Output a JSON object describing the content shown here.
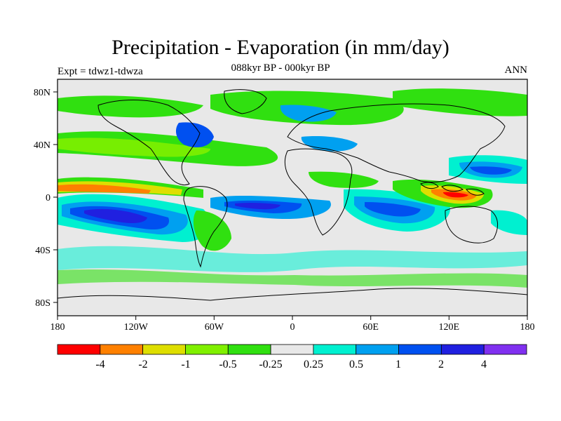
{
  "title": "Precipitation - Evaporation (in mm/day)",
  "subtitle": "088kyr BP - 000kyr BP",
  "left_label": "Expt = tdwz1-tdwza",
  "right_label": "ANN",
  "lat_ticks": [
    "80N",
    "40N",
    "0",
    "40S",
    "80S"
  ],
  "lon_ticks": [
    "180",
    "120W",
    "60W",
    "0",
    "60E",
    "120E",
    "180"
  ],
  "colorbar": {
    "colors": [
      "#ff0000",
      "#ff8000",
      "#dede00",
      "#80f000",
      "#30e010",
      "#e8e8e8",
      "#00f0d0",
      "#00a0f0",
      "#0050f0",
      "#2020e0",
      "#8030f0"
    ],
    "labels": [
      "-4",
      "-2",
      "-1",
      "-0.5",
      "-0.25",
      "0.25",
      "0.5",
      "1",
      "2",
      "4"
    ]
  },
  "palette": {
    "background": "#e8e8e8",
    "strong_neg": "#ff0000",
    "neg": "#ff8000",
    "mild_neg": "#dede00",
    "light_neg": "#80f000",
    "weak_neg": "#30e010",
    "weak_pos": "#00f0d0",
    "light_pos": "#00a0f0",
    "pos": "#0050f0",
    "strong_pos": "#2020e0",
    "coast": "#000000"
  }
}
